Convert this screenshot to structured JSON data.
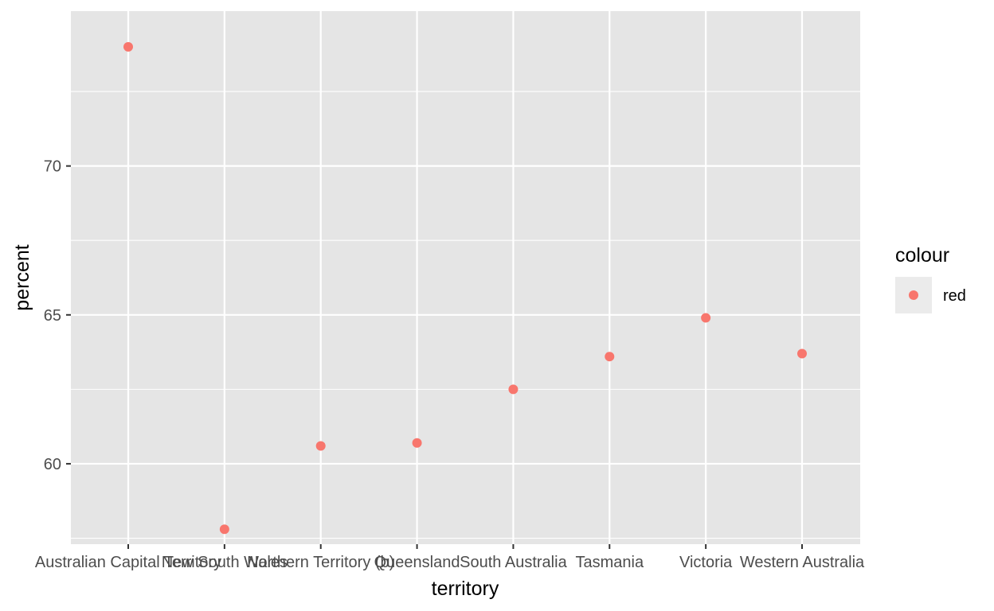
{
  "chart_data": {
    "type": "scatter",
    "xlabel": "territory",
    "ylabel": "percent",
    "categories": [
      "Australian Capital Territory",
      "New South Wales",
      "Northern Territory (b)",
      "Queensland",
      "South Australia",
      "Tasmania",
      "Victoria",
      "Western Australia"
    ],
    "series": [
      {
        "name": "red",
        "values": [
          74.0,
          57.8,
          60.6,
          60.7,
          62.5,
          63.6,
          64.9,
          63.7
        ]
      }
    ],
    "ylim": [
      57.3,
      75.2
    ],
    "yticks": [
      60,
      65,
      70
    ],
    "yminor": [
      62.5,
      67.5,
      72.5
    ],
    "grid": true,
    "legend": {
      "title": "colour",
      "position": "right"
    },
    "colors": {
      "panel": "#e5e5e5",
      "grid": "#ffffff",
      "point": "#f8766d",
      "axis_tick": "#333333"
    }
  }
}
